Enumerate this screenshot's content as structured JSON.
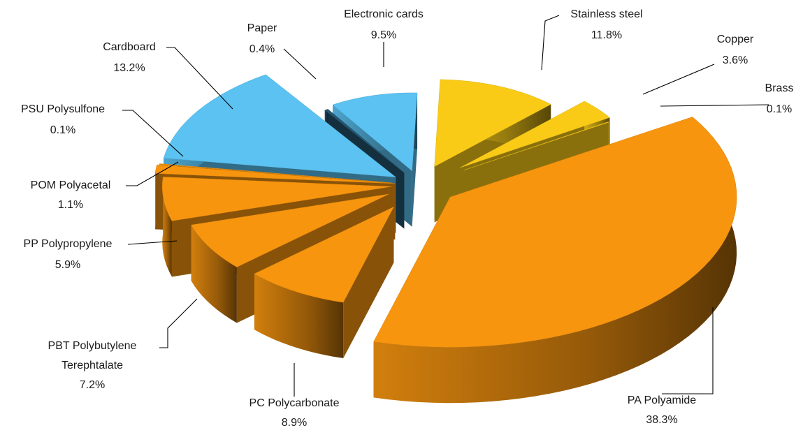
{
  "chart_data": {
    "type": "pie",
    "title": "",
    "style": "3d-exploded",
    "slices": [
      {
        "name": "Stainless steel",
        "value": 11.8,
        "value_label": "11.8%",
        "color": "#F9CB17"
      },
      {
        "name": "Copper",
        "value": 3.6,
        "value_label": "3.6%",
        "color": "#F9CB17"
      },
      {
        "name": "Brass",
        "value": 0.1,
        "value_label": "0.1%",
        "color": "#F9CB17"
      },
      {
        "name": "PA Polyamide",
        "value": 38.3,
        "value_label": "38.3%",
        "color": "#F7950F"
      },
      {
        "name": "PC Polycarbonate",
        "value": 8.9,
        "value_label": "8.9%",
        "color": "#F7950F"
      },
      {
        "name": "PBT Polybutylene Terephtalate",
        "name_lines": [
          "PBT Polybutylene",
          "Terephtalate"
        ],
        "value": 7.2,
        "value_label": "7.2%",
        "color": "#F7950F"
      },
      {
        "name": "PP Polypropylene",
        "value": 5.9,
        "value_label": "5.9%",
        "color": "#F7950F"
      },
      {
        "name": "POM Polyacetal",
        "value": 1.1,
        "value_label": "1.1%",
        "color": "#F7950F"
      },
      {
        "name": "PSU Polysulfone",
        "value": 0.1,
        "value_label": "0.1%",
        "color": "#F7950F"
      },
      {
        "name": "Cardboard",
        "value": 13.2,
        "value_label": "13.2%",
        "color": "#5BC2F2"
      },
      {
        "name": "Paper",
        "value": 0.4,
        "value_label": "0.4%",
        "color": "#25556F"
      },
      {
        "name": "Electronic cards",
        "value": 9.5,
        "value_label": "9.5%",
        "color": "#5BC2F2"
      }
    ]
  }
}
